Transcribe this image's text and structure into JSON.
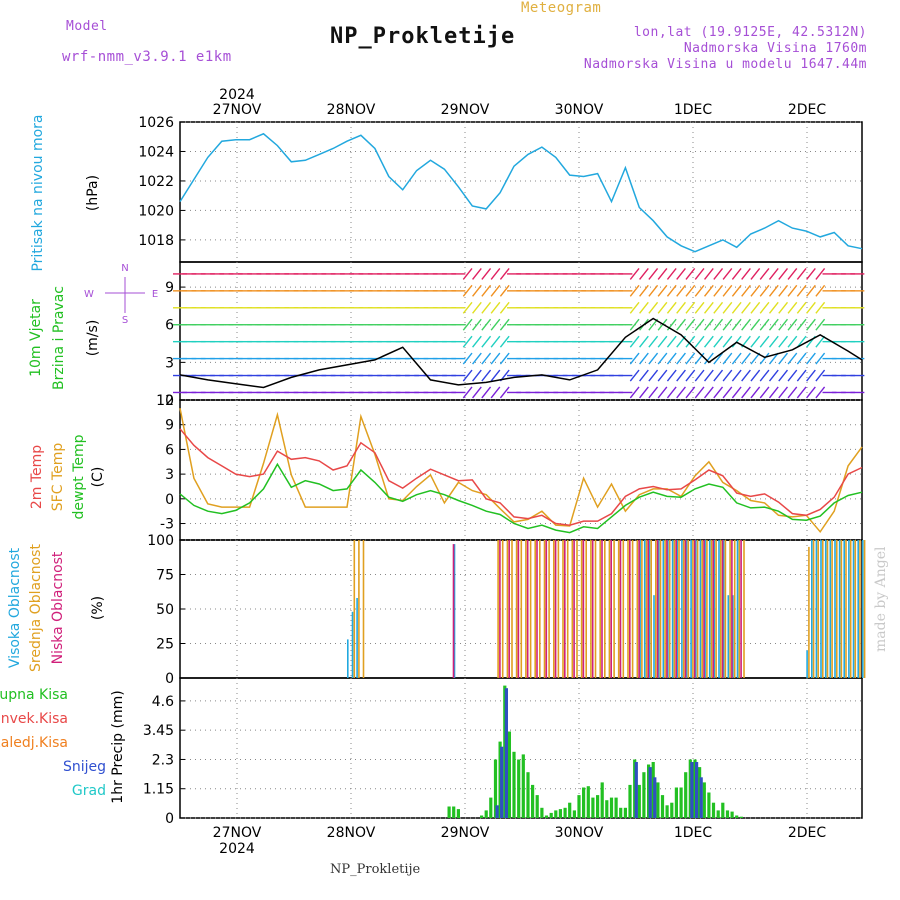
{
  "header": {
    "model_label": "Model",
    "model_name": "wrf-nmm_v3.9.1 e1km",
    "title": "NP_Prokletije",
    "subtitle": "Meteogram",
    "coords": "lon,lat (19.9125E, 42.5312N)",
    "elevation": "Nadmorska Visina 1760m",
    "model_elevation": "Nadmorska Visina u modelu 1647.44m"
  },
  "footer": {
    "station": "NP_Prokletije",
    "credit": "made by Angel"
  },
  "colors": {
    "pressure": "#22a8de",
    "temp2m": "#e84848",
    "sfc_temp": "#e0a020",
    "dewpt": "#22c022",
    "cloud_high": "#22a8de",
    "cloud_mid": "#e0a020",
    "cloud_low": "#d0207a",
    "precip_total": "#22c022",
    "precip_snow": "#3050c0"
  },
  "chart_data": [
    {
      "type": "line",
      "panel": "pressure",
      "ylabel": [
        "Pritisak na nivou mora",
        "(hPa)"
      ],
      "ylim": [
        1016.5,
        1026
      ],
      "yticks": [
        1018,
        1020,
        1022,
        1024,
        1026
      ],
      "x": [
        0,
        3,
        6,
        9,
        12,
        15,
        18,
        21,
        24,
        27,
        30,
        33,
        36,
        39,
        42,
        45,
        48,
        51,
        54,
        57,
        60,
        63,
        66,
        69,
        72,
        75,
        78,
        81,
        84,
        87,
        90,
        93,
        96,
        99,
        102,
        105,
        108,
        111,
        114,
        117,
        120,
        123,
        126,
        129,
        132,
        135,
        138,
        141,
        144,
        147
      ],
      "series": [
        {
          "name": "pressure",
          "values": [
            1020.6,
            1022.1,
            1023.6,
            1024.7,
            1024.8,
            1024.8,
            1025.2,
            1024.4,
            1023.3,
            1023.4,
            1023.8,
            1024.2,
            1024.7,
            1025.1,
            1024.2,
            1022.3,
            1021.4,
            1022.7,
            1023.4,
            1022.8,
            1021.6,
            1020.3,
            1020.1,
            1021.2,
            1023.0,
            1023.8,
            1024.3,
            1023.6,
            1022.4,
            1022.3,
            1022.5,
            1020.6,
            1022.9,
            1020.2,
            1019.3,
            1018.2,
            1017.6,
            1017.2,
            1017.6,
            1018.0,
            1017.5,
            1018.4,
            1018.8,
            1019.3,
            1018.8,
            1018.6,
            1018.2,
            1018.5,
            1017.6,
            1017.4
          ]
        }
      ],
      "x_day_labels": [
        "27NOV",
        "28NOV",
        "29NOV",
        "30NOV",
        "1DEC",
        "2DEC"
      ],
      "year_label": "2024"
    },
    {
      "type": "line",
      "panel": "wind",
      "ylabel": [
        "10m Vjetar",
        "Brzina i Pravac",
        "(m/s)"
      ],
      "direction_legend": [
        "N",
        "W",
        "E",
        "S"
      ],
      "ylim": [
        0,
        11
      ],
      "yticks": [
        0,
        3,
        6,
        9
      ],
      "x": [
        0,
        6,
        12,
        18,
        24,
        30,
        36,
        42,
        48,
        54,
        60,
        66,
        72,
        78,
        84,
        90,
        96,
        102,
        108,
        114,
        120,
        126,
        132,
        138,
        144,
        147
      ],
      "series": [
        {
          "name": "wind speed",
          "values": [
            2.0,
            1.6,
            1.3,
            1.0,
            1.8,
            2.4,
            2.8,
            3.2,
            4.2,
            1.6,
            1.2,
            1.4,
            1.8,
            2.0,
            1.6,
            2.4,
            5.0,
            6.5,
            5.2,
            3.0,
            4.6,
            3.4,
            4.0,
            5.2,
            3.9,
            3.2
          ]
        }
      ]
    },
    {
      "type": "line",
      "panel": "temperature",
      "ylabel": [
        "2m Temp",
        "SFC Temp",
        "dewpt Temp",
        "(C)"
      ],
      "ylim": [
        -5,
        12
      ],
      "yticks": [
        -3,
        0,
        3,
        6,
        9,
        12
      ],
      "x": [
        0,
        3,
        6,
        9,
        12,
        15,
        18,
        21,
        24,
        27,
        30,
        33,
        36,
        39,
        42,
        45,
        48,
        51,
        54,
        57,
        60,
        63,
        66,
        69,
        72,
        75,
        78,
        81,
        84,
        87,
        90,
        93,
        96,
        99,
        102,
        105,
        108,
        111,
        114,
        117,
        120,
        123,
        126,
        129,
        132,
        135,
        138,
        141,
        144,
        147
      ],
      "series": [
        {
          "name": "2m Temp",
          "values": [
            8.5,
            6.5,
            5.0,
            4.0,
            3.0,
            2.7,
            3.0,
            5.8,
            4.8,
            5.0,
            4.6,
            3.5,
            4.0,
            6.8,
            5.6,
            2.2,
            1.3,
            2.5,
            3.6,
            2.9,
            2.2,
            2.3,
            0.0,
            -0.5,
            -2.2,
            -2.4,
            -2.0,
            -3.0,
            -3.2,
            -2.7,
            -2.7,
            -1.8,
            0.3,
            1.2,
            1.5,
            1.1,
            1.2,
            2.3,
            3.5,
            2.8,
            0.7,
            0.3,
            0.6,
            -0.4,
            -1.8,
            -2.0,
            -1.3,
            0.2,
            3.0,
            3.8
          ]
        },
        {
          "name": "SFC Temp",
          "values": [
            11.0,
            2.5,
            -0.6,
            -1.0,
            -1.0,
            -1.0,
            4.3,
            10.2,
            2.9,
            -1.0,
            -1.0,
            -1.0,
            -1.0,
            10.0,
            5.4,
            0.0,
            -0.2,
            1.5,
            2.9,
            -0.5,
            2.0,
            1.0,
            0.5,
            -1.2,
            -2.8,
            -2.5,
            -1.5,
            -3.2,
            -3.3,
            2.5,
            -1.0,
            1.8,
            -1.5,
            0.5,
            1.2,
            1.2,
            0.3,
            2.8,
            4.5,
            2.0,
            1.0,
            -0.2,
            -0.5,
            -2.0,
            -2.2,
            -2.0,
            -4.0,
            -1.5,
            4.0,
            6.3
          ]
        },
        {
          "name": "dewpt Temp",
          "values": [
            0.6,
            -0.8,
            -1.5,
            -1.8,
            -1.4,
            -0.5,
            1.2,
            4.2,
            1.4,
            2.2,
            1.8,
            1.0,
            1.2,
            3.5,
            2.0,
            0.2,
            -0.3,
            0.5,
            1.0,
            0.5,
            -0.2,
            -0.8,
            -1.5,
            -1.9,
            -3.0,
            -3.6,
            -3.2,
            -3.8,
            -4.1,
            -3.4,
            -3.6,
            -2.2,
            -0.8,
            0.2,
            0.8,
            0.3,
            0.2,
            1.2,
            1.8,
            1.4,
            -0.5,
            -1.1,
            -1.0,
            -1.5,
            -2.5,
            -2.6,
            -2.1,
            -0.5,
            0.4,
            0.8
          ]
        }
      ]
    },
    {
      "type": "bar",
      "panel": "cloud",
      "ylabel": [
        "Visoka Oblacnost",
        "Srednja Oblacnost",
        "Niska Oblacnost",
        "(%)"
      ],
      "ylim": [
        0,
        100
      ],
      "yticks": [
        0,
        25,
        50,
        75,
        100
      ],
      "x": [
        36,
        37,
        38,
        39,
        40,
        58,
        59,
        68,
        69,
        70,
        71,
        72,
        73,
        74,
        75,
        76,
        77,
        78,
        79,
        80,
        81,
        82,
        83,
        84,
        85,
        86,
        87,
        88,
        89,
        90,
        91,
        92,
        93,
        94,
        95,
        96,
        97,
        98,
        99,
        100,
        101,
        102,
        103,
        104,
        105,
        106,
        107,
        108,
        109,
        110,
        111,
        112,
        113,
        114,
        115,
        116,
        117,
        118,
        119,
        120,
        121,
        122,
        123,
        124,
        125,
        126,
        127,
        128,
        129,
        130,
        131,
        132,
        133,
        134,
        135,
        136,
        137,
        138,
        139,
        140,
        141,
        142,
        143,
        144,
        145,
        146,
        147
      ],
      "series": [
        {
          "name": "Visoka Oblacnost",
          "values": [
            28,
            48,
            58,
            0,
            0,
            0,
            97,
            0,
            0,
            0,
            0,
            0,
            0,
            0,
            0,
            0,
            0,
            0,
            0,
            0,
            0,
            0,
            0,
            0,
            0,
            0,
            0,
            0,
            0,
            0,
            0,
            0,
            0,
            0,
            0,
            0,
            0,
            0,
            100,
            100,
            100,
            60,
            100,
            100,
            100,
            100,
            100,
            100,
            100,
            100,
            100,
            100,
            100,
            100,
            100,
            100,
            100,
            60,
            60,
            100,
            0,
            0,
            0,
            0,
            0,
            0,
            0,
            0,
            0,
            0,
            0,
            0,
            0,
            0,
            20,
            100,
            100,
            100,
            100,
            100,
            100,
            100,
            100,
            100,
            100,
            100,
            100
          ]
        },
        {
          "name": "Srednja Oblacnost",
          "values": [
            0,
            100,
            100,
            100,
            0,
            0,
            0,
            100,
            100,
            100,
            100,
            100,
            100,
            100,
            100,
            100,
            100,
            100,
            100,
            100,
            100,
            100,
            100,
            100,
            100,
            100,
            100,
            100,
            100,
            100,
            100,
            100,
            100,
            100,
            100,
            100,
            100,
            100,
            100,
            100,
            100,
            100,
            100,
            100,
            100,
            100,
            100,
            100,
            100,
            100,
            100,
            100,
            100,
            100,
            100,
            100,
            100,
            100,
            100,
            100,
            100,
            0,
            0,
            0,
            0,
            0,
            0,
            0,
            0,
            0,
            0,
            0,
            0,
            0,
            95,
            100,
            100,
            100,
            100,
            100,
            100,
            100,
            100,
            100,
            100,
            100,
            100
          ]
        },
        {
          "name": "Niska Oblacnost",
          "values": [
            0,
            0,
            0,
            0,
            0,
            97,
            0,
            100,
            0,
            100,
            0,
            100,
            0,
            100,
            0,
            100,
            0,
            100,
            0,
            100,
            0,
            100,
            0,
            100,
            0,
            100,
            0,
            100,
            0,
            100,
            0,
            100,
            0,
            100,
            0,
            100,
            0,
            100,
            0,
            100,
            0,
            100,
            0,
            100,
            0,
            100,
            0,
            100,
            0,
            100,
            0,
            100,
            0,
            100,
            0,
            100,
            0,
            100,
            0,
            100,
            0,
            0,
            0,
            0,
            0,
            0,
            0,
            0,
            0,
            0,
            0,
            0,
            0,
            0,
            0,
            0,
            0,
            0,
            0,
            0,
            0,
            0,
            0,
            0,
            0,
            0,
            0
          ]
        }
      ]
    },
    {
      "type": "bar",
      "panel": "precip",
      "ylabel": [
        "1hr Precip (mm)"
      ],
      "legend": [
        "Ukupna Kisa",
        "Konvek.Kisa",
        "Zaledj.Kisa",
        "Snijeg",
        "Grad"
      ],
      "ylim": [
        0,
        5.5
      ],
      "yticks": [
        0,
        1.15,
        2.3,
        3.45,
        4.6
      ],
      "x": [
        58,
        59,
        60,
        61,
        65,
        66,
        67,
        68,
        69,
        70,
        71,
        72,
        73,
        74,
        75,
        76,
        77,
        78,
        79,
        80,
        81,
        82,
        83,
        84,
        85,
        86,
        87,
        88,
        89,
        90,
        91,
        92,
        93,
        94,
        95,
        96,
        97,
        98,
        99,
        100,
        101,
        102,
        103,
        104,
        105,
        106,
        107,
        108,
        109,
        110,
        111,
        112,
        113,
        114,
        115,
        116,
        117,
        118,
        119,
        120,
        121,
        122,
        123,
        124
      ],
      "series": [
        {
          "name": "Ukupna Kisa",
          "values": [
            0.45,
            0.45,
            0.35,
            0,
            0.1,
            0.3,
            0.8,
            2.3,
            3.0,
            5.2,
            3.4,
            2.6,
            2.3,
            2.5,
            1.8,
            1.3,
            0.9,
            0.4,
            0.1,
            0.2,
            0.3,
            0.35,
            0.4,
            0.6,
            0.3,
            0.9,
            1.2,
            1.25,
            0.8,
            0.9,
            1.4,
            0.7,
            0.8,
            0.8,
            0.4,
            0.4,
            1.3,
            2.3,
            1.3,
            1.8,
            2.1,
            2.2,
            1.4,
            0.9,
            0.5,
            0.6,
            1.2,
            1.2,
            1.8,
            2.3,
            2.3,
            2.0,
            1.4,
            1.0,
            0.6,
            0.3,
            0.6,
            0.3,
            0.25,
            0.1,
            0.05,
            0,
            0,
            0
          ]
        },
        {
          "name": "Snijeg",
          "values": [
            0,
            0,
            0,
            0,
            0,
            0,
            0,
            0.5,
            2.8,
            5.1,
            0,
            0,
            0,
            0,
            0,
            0,
            0,
            0,
            0,
            0,
            0,
            0,
            0,
            0,
            0,
            0,
            0,
            0,
            0,
            0,
            0,
            0,
            0,
            0,
            0,
            0,
            0,
            2.2,
            0,
            0,
            2.0,
            1.6,
            0,
            0,
            0,
            0,
            0,
            0,
            0,
            2.2,
            2.2,
            1.6,
            0,
            0,
            0,
            0,
            0,
            0,
            0,
            0,
            0,
            0,
            0,
            0
          ]
        }
      ]
    }
  ]
}
